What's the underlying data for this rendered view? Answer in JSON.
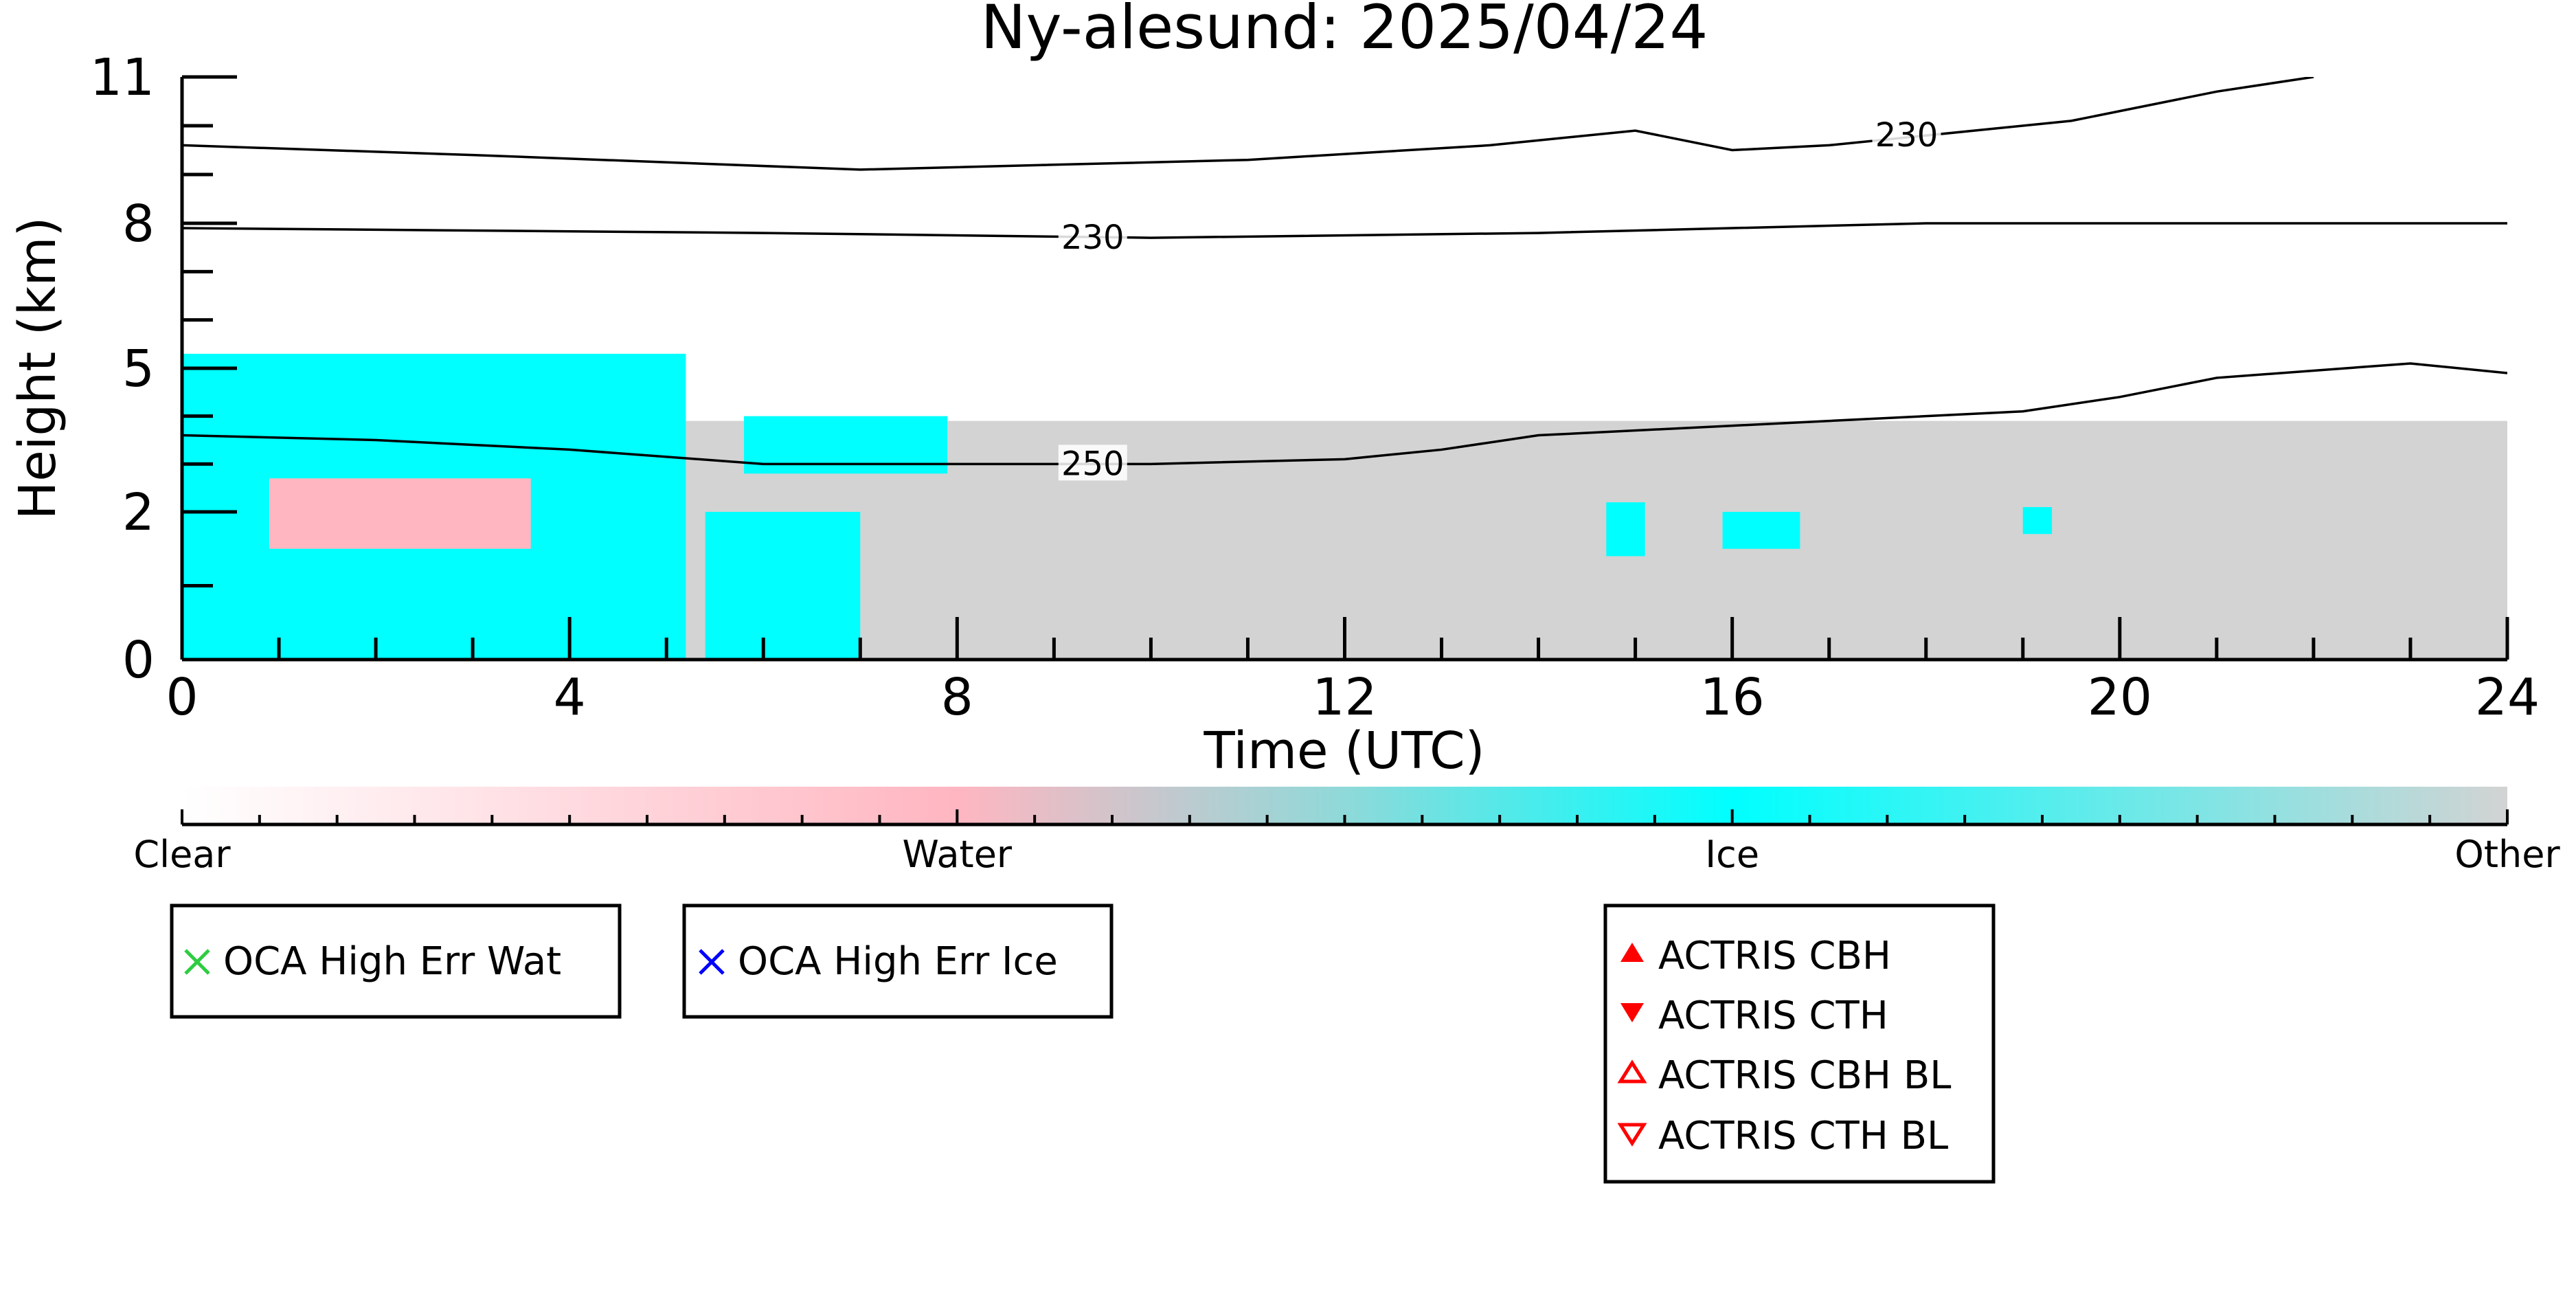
{
  "chart_data": {
    "type": "heatmap",
    "title": "Ny-alesund: 2025/04/24",
    "xlabel": "Time (UTC)",
    "ylabel": "Height (km)",
    "xlim": [
      0,
      24
    ],
    "ylim": [
      0,
      11
    ],
    "x_ticks": [
      0,
      4,
      8,
      12,
      16,
      20,
      24
    ],
    "y_ticks": [
      0,
      2,
      5,
      8,
      11
    ],
    "x_tick_labels": [
      "0",
      "4",
      "8",
      "12",
      "16",
      "20",
      "24"
    ],
    "y_tick_labels": [
      "0",
      "2",
      "5",
      "8",
      "11"
    ],
    "y_scale": "nonlinear (reversed-exponential)",
    "classes": [
      {
        "name": "Clear",
        "color": "#ffffff"
      },
      {
        "name": "Water",
        "color": "#ffb6c1"
      },
      {
        "name": "Ice",
        "color": "#00ffff"
      },
      {
        "name": "Other",
        "color": "#d3d3d3"
      }
    ],
    "regions": [
      {
        "class": "Other",
        "x": [
          0,
          24
        ],
        "y": [
          0,
          3.9
        ]
      },
      {
        "class": "Ice",
        "x": [
          0,
          5.2
        ],
        "y": [
          0,
          5.3
        ]
      },
      {
        "class": "Ice",
        "x": [
          5.4,
          7.0
        ],
        "y": [
          0,
          2.0
        ]
      },
      {
        "class": "Ice",
        "x": [
          5.8,
          7.9
        ],
        "y": [
          2.8,
          4.0
        ]
      },
      {
        "class": "Water",
        "x": [
          0.9,
          3.6
        ],
        "y": [
          1.5,
          2.7
        ]
      },
      {
        "class": "Ice",
        "x": [
          14.7,
          15.1
        ],
        "y": [
          1.4,
          2.2
        ]
      },
      {
        "class": "Ice",
        "x": [
          15.9,
          16.7
        ],
        "y": [
          1.5,
          2.0
        ]
      },
      {
        "class": "Ice",
        "x": [
          19.0,
          19.3
        ],
        "y": [
          1.7,
          2.1
        ]
      }
    ],
    "temperature_contours": [
      {
        "label": "250",
        "x": [
          0,
          2,
          4,
          6,
          8,
          10,
          12,
          13,
          14,
          16,
          19,
          20,
          21,
          23,
          24
        ],
        "y": [
          3.6,
          3.5,
          3.3,
          3.0,
          3.0,
          3.0,
          3.1,
          3.3,
          3.6,
          3.8,
          4.1,
          4.4,
          4.8,
          5.1,
          4.9
        ]
      },
      {
        "label": "230",
        "x": [
          0,
          6,
          10,
          14,
          18,
          20,
          24
        ],
        "y": [
          7.9,
          7.8,
          7.7,
          7.8,
          8.0,
          8.0,
          8.0
        ]
      },
      {
        "label": "230",
        "x": [
          0,
          3,
          7,
          11,
          13.5,
          15,
          16,
          17,
          19.5,
          21,
          22
        ],
        "y": [
          9.6,
          9.4,
          9.1,
          9.3,
          9.6,
          9.9,
          9.5,
          9.6,
          10.1,
          10.7,
          11.0
        ]
      }
    ],
    "contour_labels": [
      {
        "text": "250",
        "x": 9.4,
        "y": 3.0
      },
      {
        "text": "230",
        "x": 9.4,
        "y": 7.7
      },
      {
        "text": "230",
        "x": 17.8,
        "y": 9.8
      }
    ],
    "colorbar": {
      "labels": [
        "Clear",
        "Water",
        "Ice",
        "Other"
      ],
      "positions": [
        0,
        1,
        2,
        3
      ]
    },
    "legends": [
      {
        "items": [
          {
            "label": "OCA High Err Wat",
            "marker": "x",
            "color": "#2ecc40"
          }
        ]
      },
      {
        "items": [
          {
            "label": "OCA High Err Ice",
            "marker": "x",
            "color": "#0000ff"
          }
        ]
      },
      {
        "items": [
          {
            "label": "ACTRIS CBH",
            "marker": "triangle-up-filled",
            "color": "#ff0000"
          },
          {
            "label": "ACTRIS CTH",
            "marker": "triangle-down-filled",
            "color": "#ff0000"
          },
          {
            "label": "ACTRIS CBH BL",
            "marker": "triangle-up-open",
            "color": "#ff0000"
          },
          {
            "label": "ACTRIS CTH BL",
            "marker": "triangle-down-open",
            "color": "#ff0000"
          }
        ]
      }
    ]
  }
}
